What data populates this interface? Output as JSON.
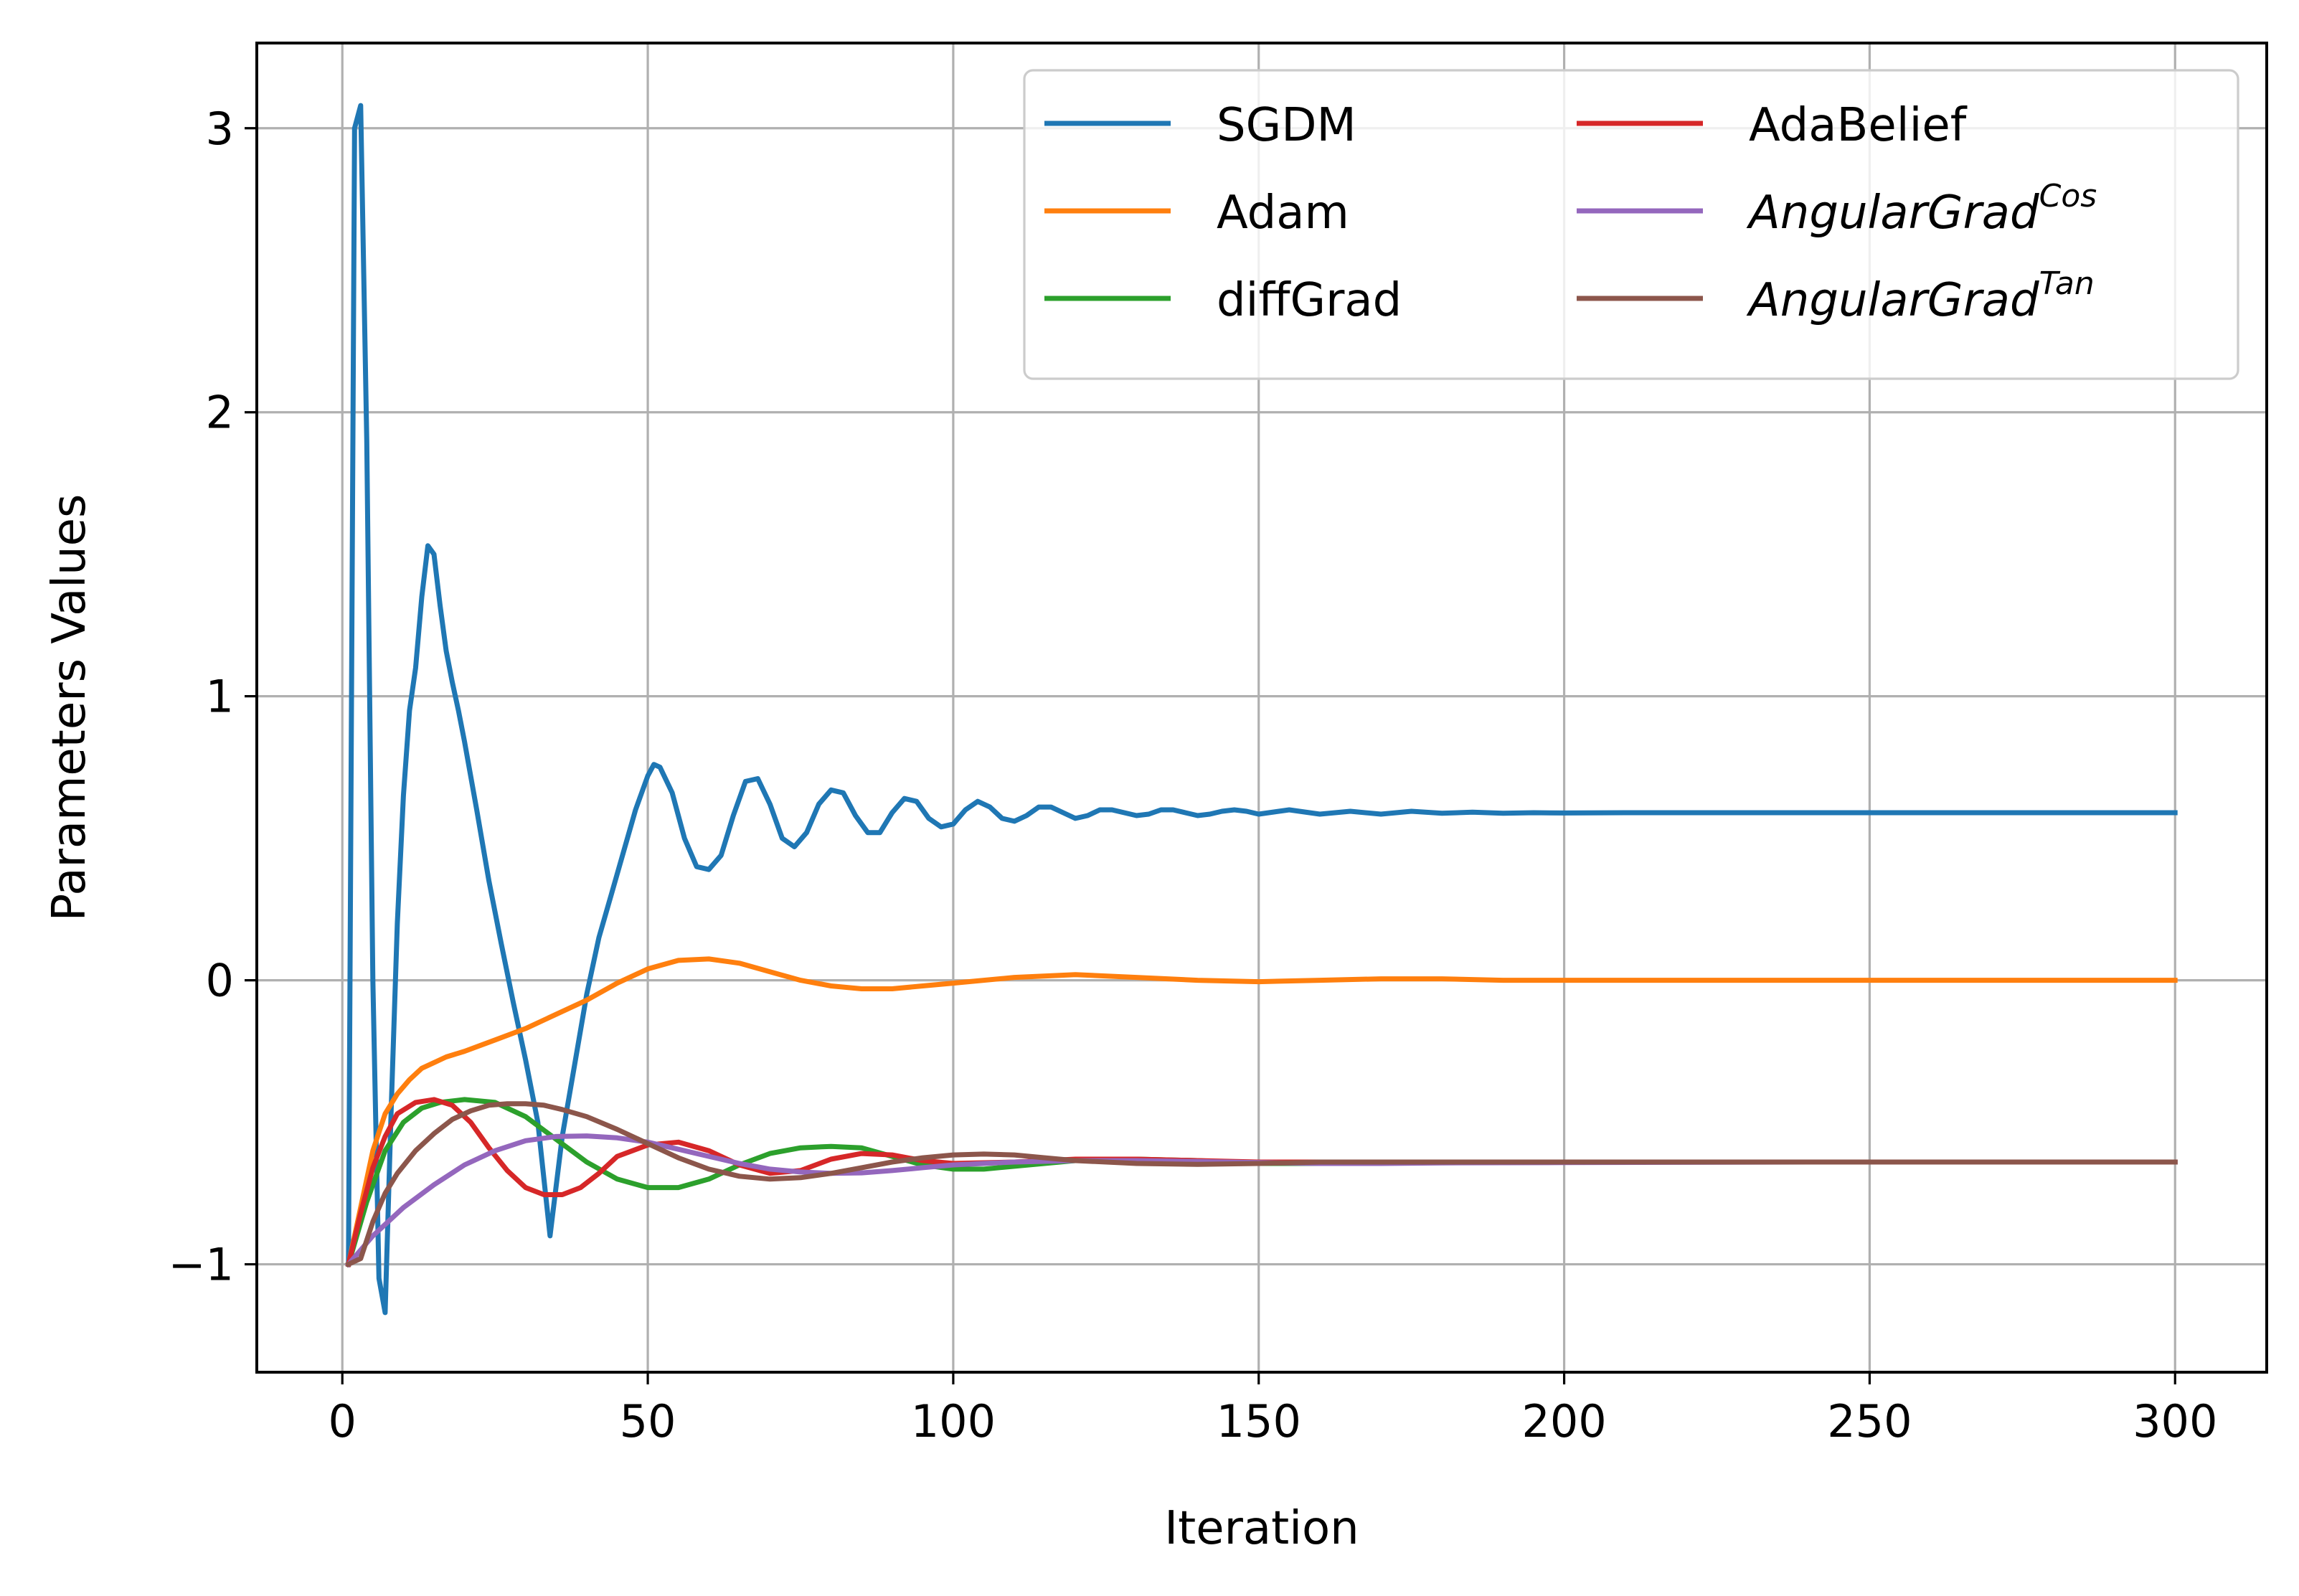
{
  "chart_data": {
    "type": "line",
    "xlabel": "Iteration",
    "ylabel": "Parameters Values",
    "xlim": [
      -14,
      315
    ],
    "ylim": [
      -1.38,
      3.3
    ],
    "xticks": [
      0,
      50,
      100,
      150,
      200,
      250,
      300
    ],
    "xtick_labels": [
      "0",
      "50",
      "100",
      "150",
      "200",
      "250",
      "300"
    ],
    "yticks": [
      -1,
      0,
      1,
      2,
      3
    ],
    "ytick_labels": [
      "−1",
      "0",
      "1",
      "2",
      "3"
    ],
    "grid": true,
    "legend_position": "top-right",
    "legend_columns": 2,
    "series": [
      {
        "name": "SGDM",
        "legend_base": "SGDM",
        "legend_sup": "",
        "italic": false,
        "color": "#1f77b4",
        "x": [
          1,
          2,
          3,
          4,
          5,
          6,
          7,
          8,
          9,
          10,
          11,
          12,
          13,
          14,
          15,
          16,
          17,
          18,
          19,
          20,
          22,
          24,
          26,
          28,
          30,
          32,
          34,
          36,
          38,
          40,
          42,
          44,
          46,
          48,
          50,
          51,
          52,
          54,
          56,
          58,
          60,
          62,
          64,
          66,
          68,
          70,
          72,
          74,
          76,
          78,
          80,
          82,
          84,
          86,
          88,
          90,
          92,
          94,
          96,
          98,
          100,
          102,
          104,
          106,
          108,
          110,
          112,
          114,
          116,
          118,
          120,
          122,
          124,
          126,
          128,
          130,
          132,
          134,
          136,
          138,
          140,
          142,
          144,
          146,
          148,
          150,
          155,
          160,
          165,
          170,
          175,
          180,
          185,
          190,
          195,
          200,
          210,
          220,
          230,
          240,
          250,
          260,
          270,
          280,
          290,
          300
        ],
        "y": [
          -1.0,
          3.0,
          3.08,
          1.9,
          0.0,
          -1.05,
          -1.17,
          -0.45,
          0.2,
          0.65,
          0.95,
          1.1,
          1.35,
          1.53,
          1.5,
          1.32,
          1.16,
          1.05,
          0.95,
          0.84,
          0.6,
          0.35,
          0.13,
          -0.08,
          -0.28,
          -0.5,
          -0.9,
          -0.55,
          -0.3,
          -0.05,
          0.15,
          0.3,
          0.45,
          0.6,
          0.72,
          0.76,
          0.75,
          0.66,
          0.5,
          0.4,
          0.39,
          0.44,
          0.58,
          0.7,
          0.71,
          0.62,
          0.5,
          0.47,
          0.52,
          0.62,
          0.67,
          0.66,
          0.58,
          0.52,
          0.52,
          0.59,
          0.64,
          0.63,
          0.57,
          0.54,
          0.55,
          0.6,
          0.63,
          0.61,
          0.57,
          0.56,
          0.58,
          0.61,
          0.61,
          0.59,
          0.57,
          0.58,
          0.6,
          0.6,
          0.59,
          0.58,
          0.585,
          0.6,
          0.6,
          0.59,
          0.58,
          0.585,
          0.595,
          0.6,
          0.595,
          0.585,
          0.6,
          0.585,
          0.595,
          0.585,
          0.595,
          0.588,
          0.592,
          0.588,
          0.59,
          0.589,
          0.59,
          0.59,
          0.59,
          0.59,
          0.59,
          0.59,
          0.59,
          0.59,
          0.59,
          0.59
        ]
      },
      {
        "name": "Adam",
        "legend_base": "Adam",
        "legend_sup": "",
        "italic": false,
        "color": "#ff7f0e",
        "x": [
          1,
          3,
          5,
          7,
          9,
          11,
          13,
          15,
          17,
          20,
          25,
          30,
          35,
          40,
          45,
          50,
          55,
          60,
          65,
          70,
          75,
          80,
          85,
          90,
          95,
          100,
          110,
          120,
          130,
          140,
          150,
          160,
          170,
          180,
          190,
          200,
          220,
          240,
          260,
          280,
          300
        ],
        "y": [
          -1.0,
          -0.8,
          -0.6,
          -0.47,
          -0.4,
          -0.35,
          -0.31,
          -0.29,
          -0.27,
          -0.25,
          -0.21,
          -0.17,
          -0.12,
          -0.07,
          -0.01,
          0.04,
          0.07,
          0.075,
          0.06,
          0.03,
          0.0,
          -0.02,
          -0.03,
          -0.03,
          -0.02,
          -0.01,
          0.01,
          0.02,
          0.01,
          0.0,
          -0.005,
          0.0,
          0.005,
          0.005,
          0.0,
          0.0,
          0.0,
          0.0,
          0.0,
          0.0,
          0.0
        ]
      },
      {
        "name": "diffGrad",
        "legend_base": "diffGrad",
        "legend_sup": "",
        "italic": false,
        "color": "#2ca02c",
        "x": [
          1,
          4,
          7,
          10,
          13,
          16,
          20,
          25,
          30,
          35,
          40,
          45,
          50,
          55,
          60,
          65,
          70,
          75,
          80,
          85,
          90,
          95,
          100,
          105,
          110,
          120,
          130,
          140,
          150,
          160,
          170,
          180,
          200,
          220,
          240,
          260,
          280,
          300
        ],
        "y": [
          -1.0,
          -0.78,
          -0.6,
          -0.5,
          -0.45,
          -0.43,
          -0.42,
          -0.43,
          -0.48,
          -0.56,
          -0.64,
          -0.7,
          -0.73,
          -0.73,
          -0.7,
          -0.65,
          -0.61,
          -0.59,
          -0.585,
          -0.59,
          -0.62,
          -0.65,
          -0.665,
          -0.665,
          -0.655,
          -0.635,
          -0.63,
          -0.635,
          -0.645,
          -0.645,
          -0.64,
          -0.64,
          -0.64,
          -0.64,
          -0.64,
          -0.64,
          -0.64,
          -0.64
        ]
      },
      {
        "name": "AdaBelief",
        "legend_base": "AdaBelief",
        "legend_sup": "",
        "italic": false,
        "color": "#d62728",
        "x": [
          1,
          3,
          5,
          7,
          9,
          12,
          15,
          18,
          21,
          24,
          27,
          30,
          33,
          36,
          39,
          42,
          45,
          50,
          55,
          60,
          65,
          70,
          75,
          80,
          85,
          90,
          95,
          100,
          110,
          120,
          130,
          140,
          150,
          160,
          180,
          200,
          230,
          260,
          300
        ],
        "y": [
          -1.0,
          -0.82,
          -0.66,
          -0.55,
          -0.47,
          -0.43,
          -0.42,
          -0.44,
          -0.5,
          -0.59,
          -0.67,
          -0.73,
          -0.755,
          -0.755,
          -0.73,
          -0.68,
          -0.62,
          -0.58,
          -0.57,
          -0.6,
          -0.65,
          -0.68,
          -0.67,
          -0.63,
          -0.61,
          -0.615,
          -0.635,
          -0.645,
          -0.64,
          -0.63,
          -0.63,
          -0.635,
          -0.64,
          -0.64,
          -0.64,
          -0.64,
          -0.64,
          -0.64,
          -0.64
        ]
      },
      {
        "name": "AngularGrad Cos",
        "legend_base": "AngularGrad",
        "legend_sup": "Cos",
        "italic": true,
        "color": "#9467bd",
        "x": [
          1,
          5,
          10,
          15,
          20,
          25,
          30,
          35,
          40,
          45,
          50,
          55,
          60,
          65,
          70,
          75,
          80,
          85,
          90,
          95,
          100,
          110,
          120,
          130,
          140,
          150,
          160,
          170,
          180,
          200,
          220,
          240,
          260,
          280,
          300
        ],
        "y": [
          -1.0,
          -0.9,
          -0.8,
          -0.72,
          -0.65,
          -0.6,
          -0.565,
          -0.55,
          -0.548,
          -0.555,
          -0.57,
          -0.595,
          -0.62,
          -0.645,
          -0.665,
          -0.675,
          -0.68,
          -0.678,
          -0.67,
          -0.66,
          -0.65,
          -0.64,
          -0.635,
          -0.635,
          -0.638,
          -0.642,
          -0.645,
          -0.645,
          -0.643,
          -0.642,
          -0.641,
          -0.64,
          -0.64,
          -0.64,
          -0.64
        ]
      },
      {
        "name": "AngularGrad Tan",
        "legend_base": "AngularGrad",
        "legend_sup": "Tan",
        "italic": true,
        "color": "#8c564b",
        "x": [
          1,
          3,
          5,
          7,
          9,
          12,
          15,
          18,
          21,
          24,
          27,
          30,
          33,
          36,
          40,
          45,
          50,
          55,
          60,
          65,
          70,
          75,
          80,
          85,
          90,
          95,
          100,
          105,
          110,
          115,
          120,
          130,
          140,
          150,
          160,
          180,
          200,
          230,
          260,
          300
        ],
        "y": [
          -1.0,
          -0.98,
          -0.85,
          -0.75,
          -0.68,
          -0.6,
          -0.54,
          -0.49,
          -0.46,
          -0.44,
          -0.435,
          -0.435,
          -0.44,
          -0.455,
          -0.48,
          -0.525,
          -0.575,
          -0.625,
          -0.665,
          -0.69,
          -0.7,
          -0.695,
          -0.68,
          -0.66,
          -0.64,
          -0.625,
          -0.615,
          -0.612,
          -0.615,
          -0.625,
          -0.635,
          -0.645,
          -0.648,
          -0.645,
          -0.64,
          -0.64,
          -0.64,
          -0.64,
          -0.64,
          -0.64
        ]
      }
    ]
  }
}
